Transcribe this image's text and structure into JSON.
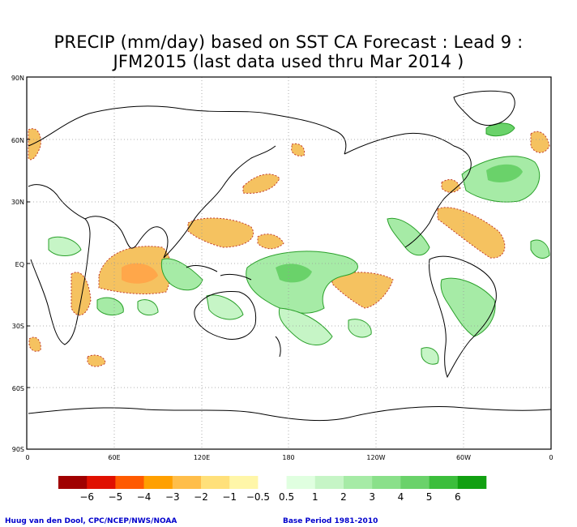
{
  "title": {
    "line1": "PRECIP (mm/day) based on SST CA Forecast : Lead 9 :",
    "line2": "JFM2015 (last data used thru Mar 2014 )"
  },
  "map": {
    "projection": "equirectangular, centered on 180",
    "lat_ticks": [
      "90N",
      "60N",
      "30N",
      "EQ",
      "30S",
      "60S",
      "90S"
    ],
    "lon_ticks": [
      "0",
      "60E",
      "120E",
      "180",
      "120W",
      "60W",
      "0"
    ],
    "gridlines": true,
    "gridline_style": "dotted"
  },
  "colorbar": {
    "colors": [
      "#a00000",
      "#e01000",
      "#ff5a00",
      "#ffa000",
      "#ffbe4a",
      "#ffe07a",
      "#fff6a8",
      "#ffffff",
      "#e0ffe0",
      "#c6f5c6",
      "#a6eba6",
      "#8ae08a",
      "#6ad26a",
      "#3cbe3c",
      "#11a011"
    ],
    "labels": [
      "−6",
      "−5",
      "−4",
      "−3",
      "−2",
      "−1",
      "−0.5",
      "0.5",
      "1",
      "2",
      "3",
      "4",
      "5",
      "6"
    ]
  },
  "colors": {
    "dry": "#f5c260",
    "wet": "#9ae49a",
    "wet_contour": "#2aa02a",
    "dry_contour": "#c0392b",
    "coast": "#000000",
    "grid": "#999999",
    "footer_text": "#0000cc"
  },
  "footer": {
    "left": "Huug van den Dool, CPC/NCEP/NWS/NOAA",
    "right": "Base Period 1981-2010"
  }
}
